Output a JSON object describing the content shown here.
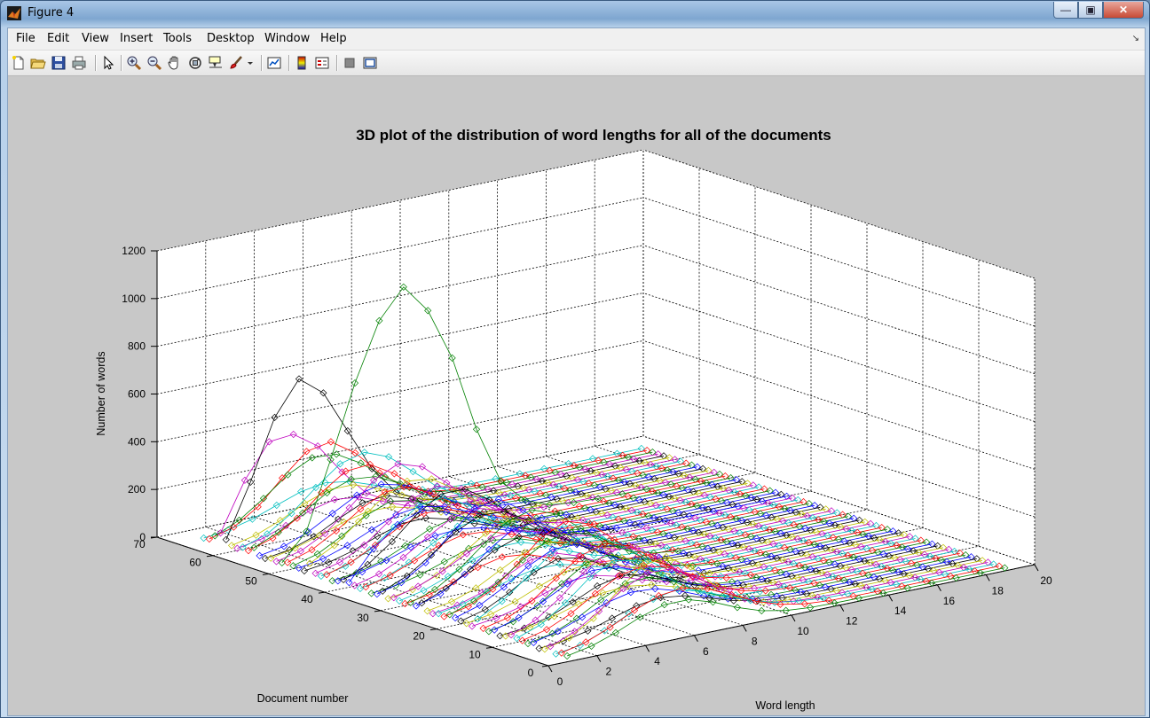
{
  "window": {
    "title": "Figure 4"
  },
  "menu": [
    "File",
    "Edit",
    "View",
    "Insert",
    "Tools",
    "Desktop",
    "Window",
    "Help"
  ],
  "toolbar_icons": [
    "new-figure-icon",
    "open-file-icon",
    "save-icon",
    "print-icon",
    "edit-plot-arrow-icon",
    "zoom-in-icon",
    "zoom-out-icon",
    "pan-hand-icon",
    "rotate-3d-icon",
    "data-cursor-icon",
    "brush-icon",
    "brush-dropdown-icon",
    "link-plot-icon",
    "insert-colorbar-icon",
    "insert-legend-icon",
    "hide-plot-tools-icon",
    "show-plot-tools-icon"
  ],
  "colors": {
    "green": "#008000",
    "black": "#000000",
    "magenta": "#bf00bf",
    "blue": "#0000ff",
    "cyan": "#00bfbf",
    "yellow": "#bfbf00",
    "red": "#ff0000"
  },
  "chart_data": {
    "type": "line",
    "projection": "3d",
    "title": "3D plot of the distribution of word lengths for all of the documents",
    "xlabel": "Word length",
    "ylabel": "Document number",
    "zlabel": "Number of words",
    "xlim": [
      0,
      20
    ],
    "ylim": [
      0,
      70
    ],
    "zlim": [
      0,
      1200
    ],
    "xticks": [
      "0",
      "2",
      "4",
      "6",
      "8",
      "10",
      "12",
      "14",
      "16",
      "18",
      "20"
    ],
    "yticks": [
      "0",
      "10",
      "20",
      "30",
      "40",
      "50",
      "60",
      "70"
    ],
    "zticks": [
      "0",
      "200",
      "400",
      "600",
      "800",
      "1000",
      "1200"
    ],
    "grid": true,
    "marker": "diamond",
    "x": [
      1,
      2,
      3,
      4,
      5,
      6,
      7,
      8,
      9,
      10,
      11,
      12,
      13,
      14,
      15,
      16,
      17,
      18,
      19
    ],
    "series_count": 66,
    "highlighted_series": [
      {
        "doc": 52,
        "color": "green",
        "values": [
          10,
          120,
          400,
          700,
          940,
          1060,
          940,
          720,
          400,
          160,
          60,
          20,
          8,
          4,
          2,
          1,
          0,
          0,
          0
        ]
      },
      {
        "doc": 62,
        "color": "black",
        "values": [
          30,
          250,
          500,
          640,
          560,
          380,
          200,
          80,
          30,
          10,
          4,
          2,
          0,
          0,
          0,
          0,
          0,
          0,
          0
        ]
      },
      {
        "doc": 63,
        "color": "magenta",
        "values": [
          50,
          250,
          390,
          400,
          330,
          200,
          90,
          35,
          12,
          5,
          2,
          0,
          0,
          0,
          0,
          0,
          0,
          0,
          0
        ]
      },
      {
        "doc": 40,
        "color": "blue",
        "values": [
          20,
          140,
          220,
          260,
          230,
          180,
          130,
          90,
          60,
          40,
          25,
          15,
          8,
          4,
          2,
          1,
          0,
          0,
          0
        ]
      },
      {
        "doc": 3,
        "color": "cyan",
        "values": [
          5,
          20,
          60,
          110,
          150,
          170,
          140,
          100,
          60,
          30,
          15,
          6,
          3,
          1,
          0,
          0,
          0,
          0,
          0
        ]
      }
    ]
  }
}
